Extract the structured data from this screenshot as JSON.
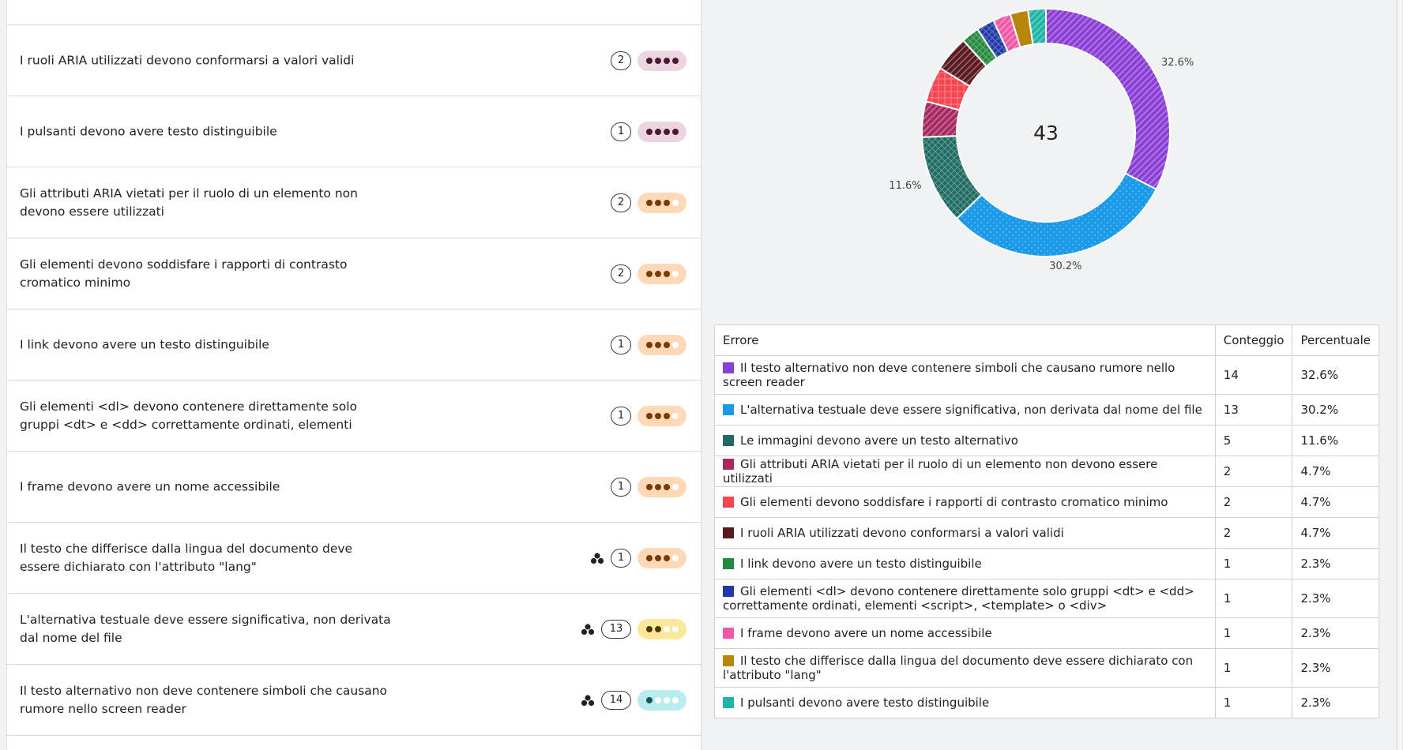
{
  "issues": [
    {
      "label": "",
      "count": "",
      "severity": "critical",
      "grouped": false
    },
    {
      "label": "I ruoli ARIA utilizzati devono conformarsi a valori validi",
      "count": "2",
      "severity": "critical",
      "grouped": false
    },
    {
      "label": "I pulsanti devono avere testo distinguibile",
      "count": "1",
      "severity": "critical",
      "grouped": false
    },
    {
      "label": "Gli attributi ARIA vietati per il ruolo di un elemento non devono essere utilizzati",
      "count": "2",
      "severity": "serious",
      "grouped": false
    },
    {
      "label": "Gli elementi devono soddisfare i rapporti di contrasto cromatico minimo",
      "count": "2",
      "severity": "serious",
      "grouped": false
    },
    {
      "label": "I link devono avere un testo distinguibile",
      "count": "1",
      "severity": "serious",
      "grouped": false
    },
    {
      "label": "Gli elementi <dl> devono contenere direttamente solo gruppi <dt> e <dd> correttamente ordinati, elementi",
      "count": "1",
      "severity": "serious",
      "grouped": false
    },
    {
      "label": "I frame devono avere un nome accessibile",
      "count": "1",
      "severity": "serious",
      "grouped": false
    },
    {
      "label": "Il testo che differisce dalla lingua del documento deve essere dichiarato con l'attributo \"lang\"",
      "count": "1",
      "severity": "serious",
      "grouped": true
    },
    {
      "label": "L'alternativa testuale deve essere significativa, non derivata dal nome del file",
      "count": "13",
      "severity": "moderate",
      "grouped": true
    },
    {
      "label": "Il testo alternativo non deve contenere simboli che causano rumore nello screen reader",
      "count": "14",
      "severity": "minor",
      "grouped": true
    }
  ],
  "severity_styles": {
    "critical": {
      "bg": "#ecd5e0",
      "dot": "#4a1a33",
      "filled": 4
    },
    "serious": {
      "bg": "#fdd9b8",
      "dot": "#7a3a05",
      "filled": 3
    },
    "moderate": {
      "bg": "#fbe89a",
      "dot": "#4a3a00",
      "filled": 2
    },
    "minor": {
      "bg": "#b9ecef",
      "dot": "#0b5c5e",
      "filled": 1
    }
  },
  "chart_data": {
    "type": "pie",
    "donut": true,
    "total_label": "43",
    "slices": [
      {
        "name": "Il testo alternativo non deve contenere simboli che causano rumore nello screen reader",
        "value": 14,
        "percent": "32.6%",
        "color": "#8a3fd6",
        "pattern": "diagonal",
        "show_label": true
      },
      {
        "name": "L'alternativa testuale deve essere significativa, non derivata dal nome del file",
        "value": 13,
        "percent": "30.2%",
        "color": "#1a9ae8",
        "pattern": "dots",
        "show_label": true
      },
      {
        "name": "Le immagini devono avere un testo alternativo",
        "value": 5,
        "percent": "11.6%",
        "color": "#1f6b64",
        "pattern": "crosshatch",
        "show_label": true
      },
      {
        "name": "Gli attributi ARIA vietati per il ruolo di un elemento non devono essere utilizzati",
        "value": 2,
        "percent": "4.7%",
        "color": "#a62a5f",
        "pattern": "diagonal",
        "show_label": false
      },
      {
        "name": "Gli elementi devono soddisfare i rapporti di contrasto cromatico minimo",
        "value": 2,
        "percent": "4.7%",
        "color": "#f5454f",
        "pattern": "grid",
        "show_label": false
      },
      {
        "name": "I ruoli ARIA utilizzati devono conformarsi a valori validi",
        "value": 2,
        "percent": "4.7%",
        "color": "#5a1a1f",
        "pattern": "diagonal",
        "show_label": false
      },
      {
        "name": "I link devono avere un testo distinguibile",
        "value": 1,
        "percent": "2.3%",
        "color": "#238a3e",
        "pattern": "crosshatch",
        "show_label": false
      },
      {
        "name": "Gli elementi <dl> devono contenere direttamente solo gruppi <dt> e <dd> correttamente ordinati, elementi <script>, <template> o <div>",
        "value": 1,
        "percent": "2.3%",
        "color": "#1f3aa8",
        "pattern": "crosshatch",
        "show_label": false
      },
      {
        "name": "I frame devono avere un nome accessibile",
        "value": 1,
        "percent": "2.3%",
        "color": "#ef5aa8",
        "pattern": "diagonal",
        "show_label": false
      },
      {
        "name": "Il testo che differisce dalla lingua del documento deve essere dichiarato con l'attributo \"lang\"",
        "value": 1,
        "percent": "2.3%",
        "color": "#b8860b",
        "pattern": "none",
        "show_label": false
      },
      {
        "name": "I pulsanti devono avere testo distinguibile",
        "value": 1,
        "percent": "2.3%",
        "color": "#1fb5a6",
        "pattern": "diagonal",
        "show_label": false
      }
    ]
  },
  "table": {
    "headers": {
      "error": "Errore",
      "count": "Conteggio",
      "percent": "Percentuale"
    },
    "rows": [
      {
        "error": "Il testo alternativo non deve contenere simboli che causano rumore nello screen reader",
        "count": "14",
        "percent": "32.6%",
        "color": "#8a3fd6",
        "tall": true
      },
      {
        "error": "L'alternativa testuale deve essere significativa, non derivata dal nome del file",
        "count": "13",
        "percent": "30.2%",
        "color": "#1a9ae8",
        "tall": false
      },
      {
        "error": "Le immagini devono avere un testo alternativo",
        "count": "5",
        "percent": "11.6%",
        "color": "#1f6b64",
        "tall": false
      },
      {
        "error": "Gli attributi ARIA vietati per il ruolo di un elemento non devono essere utilizzati",
        "count": "2",
        "percent": "4.7%",
        "color": "#a62a5f",
        "tall": false
      },
      {
        "error": "Gli elementi devono soddisfare i rapporti di contrasto cromatico minimo",
        "count": "2",
        "percent": "4.7%",
        "color": "#f5454f",
        "tall": false
      },
      {
        "error": "I ruoli ARIA utilizzati devono conformarsi a valori validi",
        "count": "2",
        "percent": "4.7%",
        "color": "#5a1a1f",
        "tall": false
      },
      {
        "error": "I link devono avere un testo distinguibile",
        "count": "1",
        "percent": "2.3%",
        "color": "#238a3e",
        "tall": false
      },
      {
        "error": "Gli elementi <dl> devono contenere direttamente solo gruppi <dt> e <dd> correttamente ordinati, elementi <script>, <template> o <div>",
        "count": "1",
        "percent": "2.3%",
        "color": "#1f3aa8",
        "tall": true
      },
      {
        "error": "I frame devono avere un nome accessibile",
        "count": "1",
        "percent": "2.3%",
        "color": "#ef5aa8",
        "tall": false
      },
      {
        "error": "Il testo che differisce dalla lingua del documento deve essere dichiarato con l'attributo \"lang\"",
        "count": "1",
        "percent": "2.3%",
        "color": "#b8860b",
        "tall": true
      },
      {
        "error": "I pulsanti devono avere testo distinguibile",
        "count": "1",
        "percent": "2.3%",
        "color": "#1fb5a6",
        "tall": false
      }
    ]
  }
}
